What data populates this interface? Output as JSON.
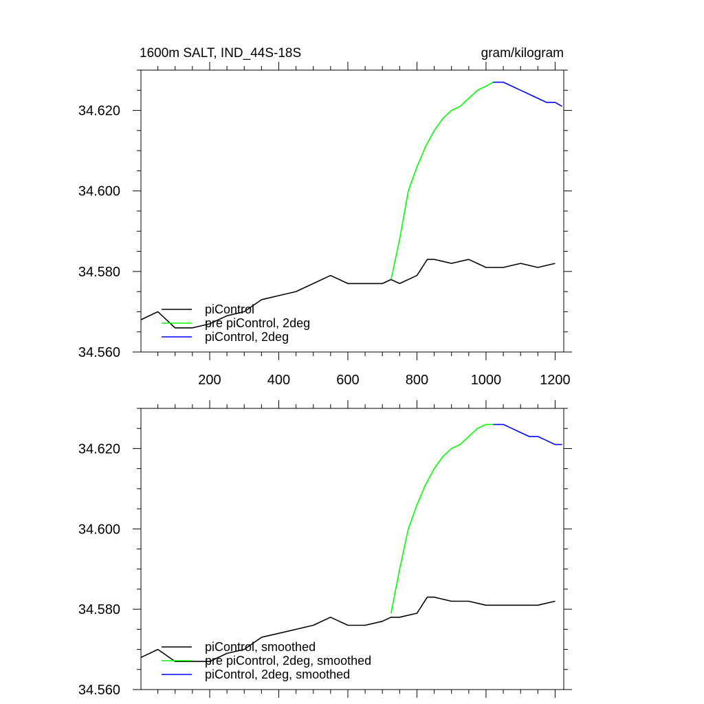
{
  "figure": {
    "title_left": "1600m SALT, IND_44S-18S",
    "title_right": "gram/kilogram"
  },
  "chart_data": [
    {
      "type": "line",
      "title": "1600m SALT, IND_44S-18S",
      "units": "gram/kilogram",
      "xlabel": "",
      "ylabel": "",
      "xlim": [
        1,
        1225
      ],
      "ylim": [
        34.56,
        34.63
      ],
      "x_ticks": [
        200,
        400,
        600,
        800,
        1000,
        1200
      ],
      "x_tick_labels": [
        "200",
        "400",
        "600",
        "800",
        "1000",
        "1200"
      ],
      "y_ticks": [
        34.56,
        34.58,
        34.6,
        34.62
      ],
      "y_tick_labels": [
        "34.560",
        "34.580",
        "34.600",
        "34.620"
      ],
      "legend": {
        "placement": "bottom-left",
        "entries": [
          "piControl",
          "pre piControl, 2deg",
          "piControl, 2deg"
        ]
      },
      "series": [
        {
          "name": "piControl",
          "color": "#000000",
          "x": [
            1,
            50,
            100,
            150,
            200,
            250,
            300,
            350,
            400,
            450,
            500,
            550,
            600,
            650,
            700,
            725,
            750,
            800,
            830,
            850,
            900,
            950,
            1000,
            1050,
            1100,
            1150,
            1200
          ],
          "y": [
            34.568,
            34.57,
            34.566,
            34.566,
            34.567,
            34.569,
            34.57,
            34.573,
            34.574,
            34.575,
            34.577,
            34.579,
            34.577,
            34.577,
            34.577,
            34.578,
            34.577,
            34.579,
            34.583,
            34.583,
            34.582,
            34.583,
            34.581,
            34.581,
            34.582,
            34.581,
            34.582
          ]
        },
        {
          "name": "pre piControl, 2deg",
          "color": "#00ff00",
          "x": [
            725,
            750,
            775,
            800,
            825,
            850,
            875,
            900,
            925,
            950,
            975,
            1000,
            1020
          ],
          "y": [
            34.578,
            34.588,
            34.6,
            34.606,
            34.611,
            34.615,
            34.618,
            34.62,
            34.621,
            34.623,
            34.625,
            34.626,
            34.627
          ]
        },
        {
          "name": "piControl, 2deg",
          "color": "#0000ff",
          "x": [
            1020,
            1050,
            1075,
            1100,
            1125,
            1150,
            1175,
            1200,
            1220
          ],
          "y": [
            34.627,
            34.627,
            34.626,
            34.625,
            34.624,
            34.623,
            34.622,
            34.622,
            34.621
          ]
        }
      ]
    },
    {
      "type": "line",
      "title": "",
      "xlabel": "",
      "ylabel": "",
      "xlim": [
        1,
        1225
      ],
      "ylim": [
        34.56,
        34.63
      ],
      "x_ticks": [
        200,
        400,
        600,
        800,
        1000,
        1200
      ],
      "x_tick_labels": [],
      "y_ticks": [
        34.56,
        34.58,
        34.6,
        34.62
      ],
      "y_tick_labels": [
        "34.560",
        "34.580",
        "34.600",
        "34.620"
      ],
      "legend": {
        "placement": "bottom-left",
        "entries": [
          "piControl, smoothed",
          "pre piControl, 2deg, smoothed",
          "piControl, 2deg, smoothed"
        ]
      },
      "series": [
        {
          "name": "piControl, smoothed",
          "color": "#000000",
          "x": [
            1,
            50,
            100,
            150,
            200,
            250,
            300,
            350,
            400,
            450,
            500,
            550,
            600,
            650,
            700,
            725,
            750,
            800,
            830,
            850,
            900,
            950,
            1000,
            1050,
            1100,
            1150,
            1200
          ],
          "y": [
            34.568,
            34.57,
            34.567,
            34.567,
            34.567,
            34.569,
            34.57,
            34.573,
            34.574,
            34.575,
            34.576,
            34.578,
            34.576,
            34.576,
            34.577,
            34.578,
            34.578,
            34.579,
            34.583,
            34.583,
            34.582,
            34.582,
            34.581,
            34.581,
            34.581,
            34.581,
            34.582
          ]
        },
        {
          "name": "pre piControl, 2deg, smoothed",
          "color": "#00ff00",
          "x": [
            725,
            750,
            775,
            800,
            825,
            850,
            875,
            900,
            925,
            950,
            975,
            1000,
            1020
          ],
          "y": [
            34.579,
            34.59,
            34.6,
            34.606,
            34.611,
            34.615,
            34.618,
            34.62,
            34.621,
            34.623,
            34.625,
            34.626,
            34.626
          ]
        },
        {
          "name": "piControl, 2deg, smoothed",
          "color": "#0000ff",
          "x": [
            1020,
            1050,
            1075,
            1100,
            1125,
            1150,
            1175,
            1200,
            1220
          ],
          "y": [
            34.626,
            34.626,
            34.625,
            34.624,
            34.623,
            34.623,
            34.622,
            34.621,
            34.621
          ]
        }
      ]
    }
  ]
}
